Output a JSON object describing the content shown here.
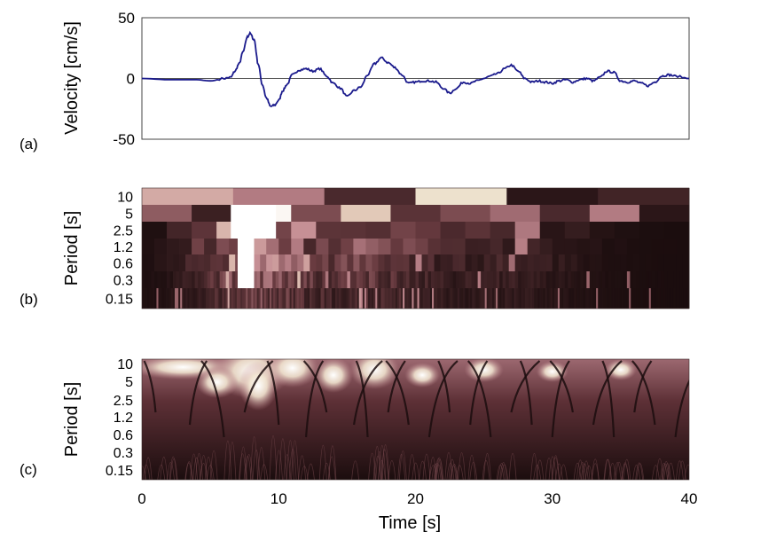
{
  "figure": {
    "panel_a_label": "(a)",
    "panel_b_label": "(b)",
    "panel_c_label": "(c)",
    "xlabel": "Time [s]"
  },
  "chart_data": [
    {
      "panel": "(a)",
      "type": "line",
      "ylabel": "Velocity [cm/s]",
      "xlim": [
        0,
        40
      ],
      "ylim": [
        -50,
        50
      ],
      "yticks": [
        50,
        0,
        -50
      ],
      "zero_line": true,
      "line_color": "#1a1a8c",
      "series": [
        {
          "x": [
            0,
            2,
            4,
            5,
            6,
            6.5,
            6.8,
            7.1,
            7.4,
            7.7,
            7.9,
            8.2,
            8.5,
            8.8,
            9.1,
            9.4,
            9.7,
            10.0,
            10.3,
            10.6,
            11.0,
            11.5,
            12.0,
            12.5,
            13.0,
            13.5,
            14.0,
            14.5,
            15.0,
            15.5,
            16.0,
            16.5,
            17.0,
            17.5,
            18.0,
            18.5,
            19.0,
            19.5,
            20.0,
            20.5,
            21.0,
            21.5,
            22.0,
            22.5,
            23.0,
            23.5,
            24.0,
            24.5,
            25.0,
            25.5,
            26.0,
            26.5,
            27.0,
            27.5,
            28.0,
            28.5,
            29.0,
            29.5,
            30.0,
            30.5,
            31.0,
            31.5,
            32.0,
            32.5,
            33.0,
            33.5,
            34.0,
            34.5,
            35.0,
            35.5,
            36.0,
            36.5,
            37.0,
            37.5,
            38.0,
            38.5,
            39.0,
            40.0
          ],
          "y": [
            0,
            -1,
            -1,
            -2,
            0,
            1,
            6,
            12,
            22,
            34,
            37,
            32,
            12,
            -5,
            -16,
            -23,
            -22,
            -18,
            -10,
            -5,
            3,
            7,
            8,
            6,
            8,
            2,
            -4,
            -8,
            -15,
            -10,
            -7,
            3,
            12,
            17,
            13,
            9,
            3,
            -4,
            -3,
            -2,
            -2,
            -3,
            -8,
            -12,
            -8,
            -3,
            -4,
            -2,
            0,
            2,
            4,
            8,
            11,
            6,
            0,
            -3,
            -2,
            -3,
            -4,
            -2,
            -1,
            -3,
            -1,
            0,
            -2,
            1,
            6,
            5,
            -2,
            -3,
            -2,
            -4,
            -6,
            -3,
            2,
            3,
            2,
            0
          ]
        }
      ]
    },
    {
      "panel": "(b)",
      "type": "heatmap",
      "ylabel": "Period [s]",
      "xlim": [
        0,
        40
      ],
      "ytick_labels": [
        "10",
        "5",
        "2.5",
        "1.2",
        "0.6",
        "0.3",
        "0.15"
      ],
      "colormap": [
        "#1b0d0e",
        "#6a3c41",
        "#c48b92",
        "#e9d9c1",
        "#ffffff"
      ],
      "rows": [
        {
          "period": "10",
          "cells": [
            0.6,
            0.45,
            0.15,
            0.8,
            0.05,
            0.12
          ]
        },
        {
          "period": "5",
          "cells": [
            0.35,
            0.1,
            0.95,
            0.3,
            0.7,
            0.2,
            0.3,
            0.4,
            0.15,
            0.45,
            0.05
          ]
        }
      ]
    },
    {
      "panel": "(c)",
      "type": "heatmap",
      "ylabel": "Period [s]",
      "xlim": [
        0,
        40
      ],
      "ytick_labels": [
        "10",
        "5",
        "2.5",
        "1.2",
        "0.6",
        "0.3",
        "0.15"
      ],
      "xticks": [
        0,
        10,
        20,
        30,
        40
      ],
      "colormap": [
        "#1b0d0e",
        "#6a3c41",
        "#c48b92",
        "#e9d9c1",
        "#ffffff"
      ]
    }
  ]
}
